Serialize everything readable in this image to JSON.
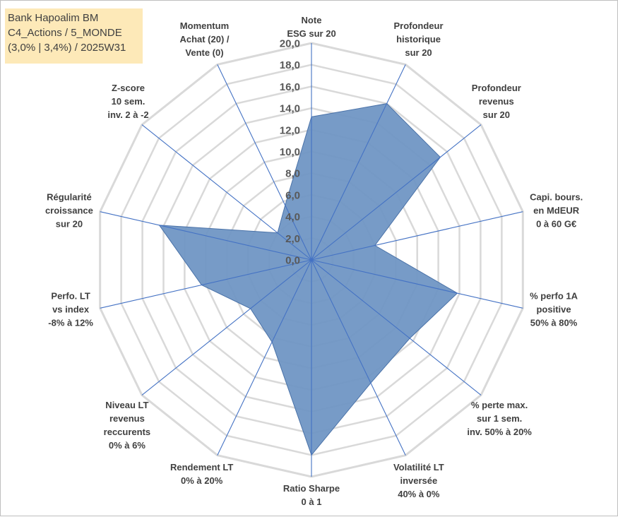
{
  "title": {
    "line1": "Bank Hapoalim BM",
    "line2": "C4_Actions / 5_MONDE",
    "line3": "(3,0% | 3,4%) / 2025W31"
  },
  "colors": {
    "fill": "#7096c4",
    "stroke": "#4a72a8",
    "spoke": "#4472c4",
    "grid": "#d9d9d9",
    "title_bg": "#fde9b8",
    "text": "#404040"
  },
  "chart_data": {
    "type": "radar",
    "title": "Bank Hapoalim BM",
    "categories": [
      "Note ESG sur 20",
      "Profondeur historique sur 20",
      "Profondeur revenus sur 20",
      "Capi. bours. en MdEUR 0 à 60 G€",
      "% perfo 1A positive 50% à 80%",
      "% perte max. sur 1 sem. inv. 50% à 20%",
      "Volatilité LT inversée 40% à 0%",
      "Ratio Sharpe 0 à 1",
      "Rendement LT 0% à 20%",
      "Niveau LT revenus reccurents 0% à 6%",
      "Perfo. LT vs index -8% à 12%",
      "Régularité croissance sur 20",
      "Z-score 10 sem. inv. 2 à -2",
      "Momentum Achat (20) / Vente (0)"
    ],
    "axis_labels": [
      [
        "Note",
        "ESG sur 20"
      ],
      [
        "Profondeur",
        "historique",
        "sur 20"
      ],
      [
        "Profondeur",
        "revenus",
        "sur 20"
      ],
      [
        "Capi. bours.",
        "en MdEUR",
        "0 à 60 G€"
      ],
      [
        "% perfo 1A",
        "positive",
        "50% à 80%"
      ],
      [
        "% perte max.",
        "sur 1 sem.",
        "inv. 50% à 20%"
      ],
      [
        "Volatilité LT",
        "inversée",
        "40% à 0%"
      ],
      [
        "Ratio Sharpe",
        "0 à 1"
      ],
      [
        "Rendement LT",
        "0% à 20%"
      ],
      [
        "Niveau LT",
        "revenus",
        "reccurents",
        "0% à 6%"
      ],
      [
        "Perfo. LT",
        "vs index",
        "-8% à 12%"
      ],
      [
        "Régularité",
        "croissance",
        "sur 20"
      ],
      [
        "Z-score",
        "10 sem.",
        "inv. 2 à -2"
      ],
      [
        "Momentum",
        "Achat (20) /",
        "Vente (0)"
      ]
    ],
    "series": [
      {
        "values": [
          13.2,
          16.0,
          15.2,
          6.0,
          13.8,
          11.6,
          12.6,
          18.0,
          8.4,
          7.2,
          10.4,
          14.4,
          4.0,
          5.6
        ]
      }
    ],
    "rmin": 0,
    "rmax": 20,
    "tick_values": [
      0,
      2,
      4,
      6,
      8,
      10,
      12,
      14,
      16,
      18,
      20
    ],
    "tick_labels": [
      "0,0",
      "2,0",
      "4,0",
      "6,0",
      "8,0",
      "10,0",
      "12,0",
      "14,0",
      "16,0",
      "18,0",
      "20,0"
    ],
    "grid": true,
    "legend": "none"
  }
}
